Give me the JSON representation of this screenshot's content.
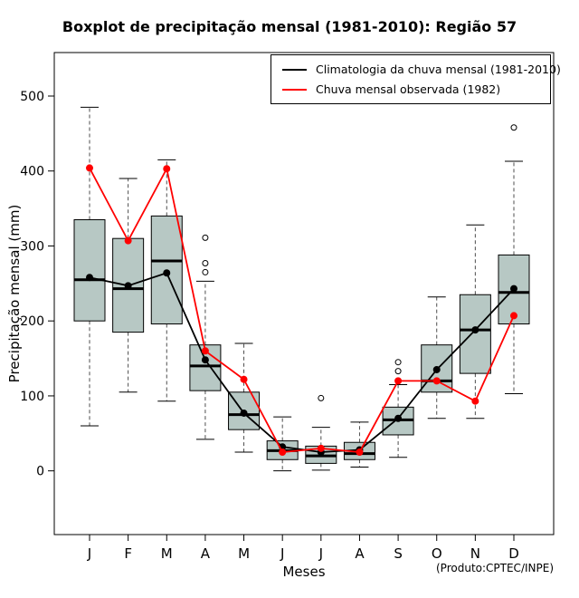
{
  "title": "Boxplot de precipitação mensal (1981-2010): Região 57",
  "xlabel": "Meses",
  "ylabel": "Precipitação mensal (mm)",
  "source": "(Produto:CPTEC/INPE)",
  "legend": [
    {
      "label": "Climatologia da chuva mensal (1981-2010)",
      "color": "#000000"
    },
    {
      "label": "Chuva mensal observada (1982)",
      "color": "#ff0000"
    }
  ],
  "chart_data": {
    "type": "boxplot",
    "categories": [
      "J",
      "F",
      "M",
      "A",
      "M",
      "J",
      "J",
      "A",
      "S",
      "O",
      "N",
      "D"
    ],
    "yticks": [
      0,
      100,
      200,
      300,
      400,
      500
    ],
    "ylim": [
      -85,
      558
    ],
    "box_fill": "#b7c8c4",
    "boxes": [
      {
        "low": 60,
        "q1": 200,
        "med": 255,
        "q3": 335,
        "high": 485,
        "outliers": []
      },
      {
        "low": 105,
        "q1": 185,
        "med": 243,
        "q3": 310,
        "high": 390,
        "outliers": []
      },
      {
        "low": 93,
        "q1": 196,
        "med": 280,
        "q3": 340,
        "high": 415,
        "outliers": []
      },
      {
        "low": 42,
        "q1": 107,
        "med": 140,
        "q3": 168,
        "high": 253,
        "outliers": [
          265,
          277,
          311
        ]
      },
      {
        "low": 25,
        "q1": 55,
        "med": 75,
        "q3": 105,
        "high": 170,
        "outliers": []
      },
      {
        "low": 0,
        "q1": 15,
        "med": 27,
        "q3": 40,
        "high": 72,
        "outliers": []
      },
      {
        "low": 1,
        "q1": 10,
        "med": 20,
        "q3": 33,
        "high": 58,
        "outliers": [
          97
        ]
      },
      {
        "low": 5,
        "q1": 15,
        "med": 23,
        "q3": 38,
        "high": 65,
        "outliers": []
      },
      {
        "low": 18,
        "q1": 48,
        "med": 68,
        "q3": 85,
        "high": 115,
        "outliers": [
          133,
          145
        ]
      },
      {
        "low": 70,
        "q1": 105,
        "med": 120,
        "q3": 168,
        "high": 232,
        "outliers": []
      },
      {
        "low": 70,
        "q1": 130,
        "med": 188,
        "q3": 235,
        "high": 328,
        "outliers": []
      },
      {
        "low": 103,
        "q1": 196,
        "med": 238,
        "q3": 288,
        "high": 413,
        "outliers": [
          458
        ]
      }
    ],
    "series": [
      {
        "name": "Climatologia da chuva mensal (1981-2010)",
        "color": "#000000",
        "values": [
          258,
          247,
          264,
          148,
          77,
          32,
          25,
          28,
          70,
          135,
          188,
          243
        ]
      },
      {
        "name": "Chuva mensal observada (1982)",
        "color": "#ff0000",
        "values": [
          404,
          307,
          403,
          160,
          122,
          25,
          30,
          25,
          120,
          120,
          93,
          207
        ]
      }
    ]
  }
}
